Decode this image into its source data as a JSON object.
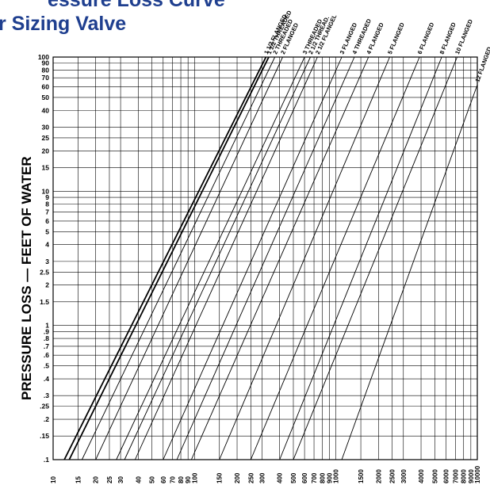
{
  "header": {
    "title_line1": "essure Loss Curve",
    "title_line2": "r Sizing Valve"
  },
  "chart_data": {
    "type": "line",
    "xscale": "log",
    "yscale": "log",
    "ylabel": "PRESSURE LOSS — FEET OF WATER",
    "xlabel": "",
    "xlim": [
      10,
      10000
    ],
    "ylim": [
      0.1,
      100
    ],
    "grid": true,
    "x_ticks": [
      {
        "v": 10,
        "t": "10"
      },
      {
        "v": 15,
        "t": "15"
      },
      {
        "v": 20,
        "t": "20"
      },
      {
        "v": 25,
        "t": "25"
      },
      {
        "v": 30,
        "t": "30"
      },
      {
        "v": 40,
        "t": "40"
      },
      {
        "v": 50,
        "t": "50"
      },
      {
        "v": 60,
        "t": "60"
      },
      {
        "v": 70,
        "t": "70"
      },
      {
        "v": 80,
        "t": "80"
      },
      {
        "v": 90,
        "t": "90"
      },
      {
        "v": 100,
        "t": "100"
      },
      {
        "v": 150,
        "t": "150"
      },
      {
        "v": 200,
        "t": "200"
      },
      {
        "v": 250,
        "t": "250"
      },
      {
        "v": 300,
        "t": "300"
      },
      {
        "v": 400,
        "t": "400"
      },
      {
        "v": 500,
        "t": "500"
      },
      {
        "v": 600,
        "t": "600"
      },
      {
        "v": 700,
        "t": "700"
      },
      {
        "v": 800,
        "t": "800"
      },
      {
        "v": 900,
        "t": "900"
      },
      {
        "v": 1000,
        "t": "1000"
      },
      {
        "v": 1500,
        "t": "1500"
      },
      {
        "v": 2000,
        "t": "2000"
      },
      {
        "v": 2500,
        "t": "2500"
      },
      {
        "v": 3000,
        "t": "3000"
      },
      {
        "v": 4000,
        "t": "4000"
      },
      {
        "v": 5000,
        "t": "5000"
      },
      {
        "v": 6000,
        "t": "6000"
      },
      {
        "v": 7000,
        "t": "7000"
      },
      {
        "v": 8000,
        "t": "8000"
      },
      {
        "v": 9000,
        "t": "9000"
      },
      {
        "v": 10000,
        "t": "10000"
      }
    ],
    "y_ticks": [
      {
        "v": 100,
        "t": "100"
      },
      {
        "v": 90,
        "t": "90"
      },
      {
        "v": 80,
        "t": "80"
      },
      {
        "v": 70,
        "t": "70"
      },
      {
        "v": 60,
        "t": "60"
      },
      {
        "v": 50,
        "t": "50"
      },
      {
        "v": 40,
        "t": "40"
      },
      {
        "v": 30,
        "t": "30"
      },
      {
        "v": 25,
        "t": "25"
      },
      {
        "v": 20,
        "t": "20"
      },
      {
        "v": 15,
        "t": "15"
      },
      {
        "v": 10,
        "t": "10"
      },
      {
        "v": 9,
        "t": "9"
      },
      {
        "v": 8,
        "t": "8"
      },
      {
        "v": 7,
        "t": "7"
      },
      {
        "v": 6,
        "t": "6"
      },
      {
        "v": 5,
        "t": "5"
      },
      {
        "v": 4,
        "t": "4"
      },
      {
        "v": 3,
        "t": "3"
      },
      {
        "v": 2.5,
        "t": "2.5"
      },
      {
        "v": 2,
        "t": "2"
      },
      {
        "v": 1.5,
        "t": "1.5"
      },
      {
        "v": 1,
        "t": "1"
      },
      {
        "v": 0.9,
        "t": ".9"
      },
      {
        "v": 0.8,
        "t": ".8"
      },
      {
        "v": 0.7,
        "t": ".7"
      },
      {
        "v": 0.6,
        "t": ".6"
      },
      {
        "v": 0.5,
        "t": ".5"
      },
      {
        "v": 0.4,
        "t": ".4"
      },
      {
        "v": 0.3,
        "t": ".3"
      },
      {
        "v": 0.25,
        "t": ".25"
      },
      {
        "v": 0.2,
        "t": ".2"
      },
      {
        "v": 0.15,
        "t": ".15"
      },
      {
        "v": 0.1,
        "t": ".1"
      }
    ],
    "series": [
      {
        "name": "1 1/2 FLANGED",
        "x": [
          12,
          320
        ],
        "y": [
          0.1,
          100
        ]
      },
      {
        "name": "1 1/2 THREADED",
        "x": [
          13,
          335
        ],
        "y": [
          0.1,
          100
        ]
      },
      {
        "name": "2 THREADED",
        "x": [
          16,
          370
        ],
        "y": [
          0.1,
          100
        ]
      },
      {
        "name": "2 FLANGED",
        "x": [
          20,
          420
        ],
        "y": [
          0.1,
          100
        ]
      },
      {
        "name": "3 THREADED",
        "x": [
          28,
          600
        ],
        "y": [
          0.1,
          100
        ]
      },
      {
        "name": "2 1/2 THREAD.",
        "x": [
          32,
          660
        ],
        "y": [
          0.1,
          100
        ]
      },
      {
        "name": "2 1/2 FLANGEL",
        "x": [
          38,
          740
        ],
        "y": [
          0.1,
          100
        ]
      },
      {
        "name": "3 FLANGED",
        "x": [
          60,
          1100
        ],
        "y": [
          0.1,
          100
        ]
      },
      {
        "name": "4 THREADED",
        "x": [
          75,
          1350
        ],
        "y": [
          0.1,
          100
        ]
      },
      {
        "name": "4 FLANGED",
        "x": [
          95,
          1700
        ],
        "y": [
          0.1,
          100
        ]
      },
      {
        "name": "5 FLANGED",
        "x": [
          150,
          2400
        ],
        "y": [
          0.1,
          100
        ]
      },
      {
        "name": "6 FLANGED",
        "x": [
          250,
          3900
        ],
        "y": [
          0.1,
          100
        ]
      },
      {
        "name": "8 FLANGED",
        "x": [
          400,
          5600
        ],
        "y": [
          0.1,
          100
        ]
      },
      {
        "name": "10 FLANGED",
        "x": [
          500,
          7200
        ],
        "y": [
          0.1,
          100
        ]
      },
      {
        "name": "12 FLANGED",
        "x": [
          1100,
          10000
        ],
        "y": [
          0.1,
          62
        ]
      }
    ]
  }
}
